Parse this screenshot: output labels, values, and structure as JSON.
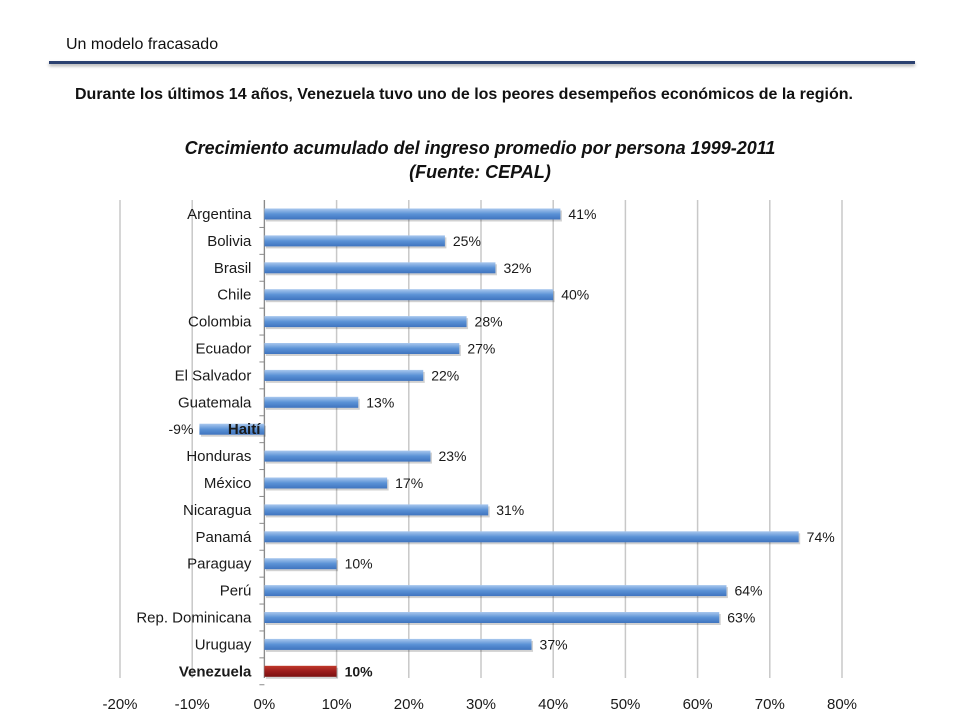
{
  "header": {
    "section": "Un modelo fracasado",
    "intro": "Durante los últimos 14 años, Venezuela tuvo uno de los peores desempeños económicos de la región."
  },
  "colors": {
    "bar": "#5b9bd5",
    "highlight": "#9b1c1c",
    "rule": "#2b4170",
    "grid": "#c8c8c8"
  },
  "chart_data": {
    "type": "bar",
    "orientation": "horizontal",
    "title": "Crecimiento acumulado del ingreso promedio por persona 1999-2011",
    "subtitle": "(Fuente: CEPAL)",
    "categories": [
      "Argentina",
      "Bolivia",
      "Brasil",
      "Chile",
      "Colombia",
      "Ecuador",
      "El Salvador",
      "Guatemala",
      "Haití",
      "Honduras",
      "México",
      "Nicaragua",
      "Panamá",
      "Paraguay",
      "Perú",
      "Rep. Dominicana",
      "Uruguay",
      "Venezuela"
    ],
    "values": [
      41,
      25,
      32,
      40,
      28,
      27,
      22,
      13,
      -9,
      23,
      17,
      31,
      74,
      10,
      64,
      63,
      37,
      10
    ],
    "data_labels": [
      "41%",
      "25%",
      "32%",
      "40%",
      "28%",
      "27%",
      "22%",
      "13%",
      "-9%",
      "23%",
      "17%",
      "31%",
      "74%",
      "10%",
      "64%",
      "63%",
      "37%",
      "10%"
    ],
    "highlight": "Venezuela",
    "xlim": [
      -20,
      80
    ],
    "xticks": [
      -20,
      -10,
      0,
      10,
      20,
      30,
      40,
      50,
      60,
      70,
      80
    ],
    "xtick_labels": [
      "-20%",
      "-10%",
      "0%",
      "10%",
      "20%",
      "30%",
      "40%",
      "50%",
      "60%",
      "70%",
      "80%"
    ],
    "grid": true,
    "legend": "none"
  }
}
